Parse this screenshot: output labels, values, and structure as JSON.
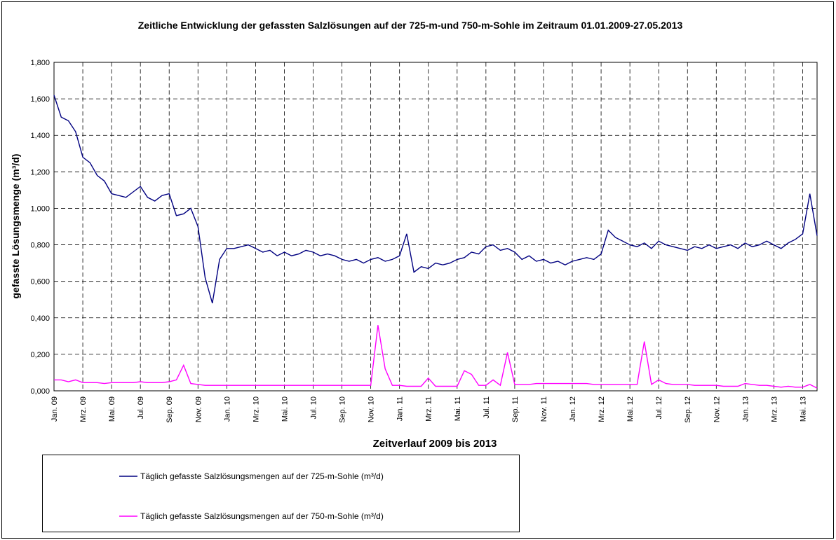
{
  "chart_data": {
    "type": "line",
    "title": "Zeitliche Entwicklung der gefassten Salzlösungen auf der 725-m-und 750-m-Sohle im Zeitraum 01.01.2009-27.05.2013",
    "x_label": "Zeitverlauf 2009 bis 2013",
    "y_label": "gefasste Lösungsmenge (m³/d)",
    "categories": [
      "Jan. 09",
      null,
      null,
      null,
      "Mrz. 09",
      null,
      null,
      null,
      "Mai. 09",
      null,
      null,
      null,
      "Jul. 09",
      null,
      null,
      null,
      "Sep. 09",
      null,
      null,
      null,
      "Nov. 09",
      null,
      null,
      null,
      "Jan. 10",
      null,
      null,
      null,
      "Mrz. 10",
      null,
      null,
      null,
      "Mai. 10",
      null,
      null,
      null,
      "Jul. 10",
      null,
      null,
      null,
      "Sep. 10",
      null,
      null,
      null,
      "Nov. 10",
      null,
      null,
      null,
      "Jan. 11",
      null,
      null,
      null,
      "Mrz. 11",
      null,
      null,
      null,
      "Mai. 11",
      null,
      null,
      null,
      "Jul. 11",
      null,
      null,
      null,
      "Sep. 11",
      null,
      null,
      null,
      "Nov. 11",
      null,
      null,
      null,
      "Jan. 12",
      null,
      null,
      null,
      "Mrz. 12",
      null,
      null,
      null,
      "Mai. 12",
      null,
      null,
      null,
      "Jul. 12",
      null,
      null,
      null,
      "Sep. 12",
      null,
      null,
      null,
      "Nov. 12",
      null,
      null,
      null,
      "Jan. 13",
      null,
      null,
      null,
      "Mrz. 13",
      null,
      null,
      null,
      "Mai. 13",
      null,
      null
    ],
    "series": [
      {
        "name": "Täglich gefasste Salzlösungsmengen auf der 725-m-Sohle (m³/d)",
        "color": "#000080",
        "values": [
          1.62,
          1.5,
          1.48,
          1.42,
          1.28,
          1.25,
          1.18,
          1.15,
          1.08,
          1.07,
          1.06,
          1.09,
          1.12,
          1.06,
          1.04,
          1.07,
          1.08,
          0.96,
          0.97,
          1.0,
          0.9,
          0.62,
          0.48,
          0.72,
          0.78,
          0.78,
          0.79,
          0.8,
          0.78,
          0.76,
          0.77,
          0.74,
          0.76,
          0.74,
          0.75,
          0.77,
          0.76,
          0.74,
          0.75,
          0.74,
          0.72,
          0.71,
          0.72,
          0.7,
          0.72,
          0.73,
          0.71,
          0.72,
          0.74,
          0.86,
          0.65,
          0.68,
          0.67,
          0.7,
          0.69,
          0.7,
          0.72,
          0.73,
          0.76,
          0.75,
          0.79,
          0.8,
          0.77,
          0.78,
          0.76,
          0.72,
          0.74,
          0.71,
          0.72,
          0.7,
          0.71,
          0.69,
          0.71,
          0.72,
          0.73,
          0.72,
          0.75,
          0.88,
          0.84,
          0.82,
          0.8,
          0.79,
          0.81,
          0.78,
          0.82,
          0.8,
          0.79,
          0.78,
          0.77,
          0.79,
          0.78,
          0.8,
          0.78,
          0.79,
          0.8,
          0.78,
          0.81,
          0.79,
          0.8,
          0.82,
          0.8,
          0.78,
          0.81,
          0.83,
          0.86,
          1.08,
          0.85
        ]
      },
      {
        "name": "Täglich gefasste Salzlösungsmengen auf der 750-m-Sohle (m³/d)",
        "color": "#ff00ff",
        "values": [
          0.06,
          0.06,
          0.05,
          0.06,
          0.045,
          0.045,
          0.045,
          0.04,
          0.045,
          0.045,
          0.045,
          0.045,
          0.05,
          0.045,
          0.045,
          0.045,
          0.05,
          0.06,
          0.14,
          0.04,
          0.035,
          0.03,
          0.03,
          0.03,
          0.03,
          0.03,
          0.03,
          0.03,
          0.03,
          0.03,
          0.03,
          0.03,
          0.03,
          0.03,
          0.03,
          0.03,
          0.03,
          0.03,
          0.03,
          0.03,
          0.03,
          0.03,
          0.03,
          0.03,
          0.03,
          0.36,
          0.12,
          0.03,
          0.03,
          0.025,
          0.025,
          0.025,
          0.07,
          0.025,
          0.025,
          0.025,
          0.025,
          0.11,
          0.09,
          0.03,
          0.03,
          0.06,
          0.03,
          0.21,
          0.035,
          0.035,
          0.035,
          0.04,
          0.04,
          0.04,
          0.04,
          0.04,
          0.04,
          0.04,
          0.04,
          0.035,
          0.035,
          0.035,
          0.035,
          0.035,
          0.035,
          0.035,
          0.27,
          0.035,
          0.06,
          0.04,
          0.035,
          0.035,
          0.035,
          0.03,
          0.03,
          0.03,
          0.03,
          0.025,
          0.025,
          0.025,
          0.04,
          0.035,
          0.03,
          0.03,
          0.025,
          0.02,
          0.025,
          0.02,
          0.02,
          0.035,
          0.015
        ]
      }
    ],
    "ylim": [
      0,
      1.8
    ],
    "yticks": [
      {
        "value": 0,
        "label": "0,000"
      },
      {
        "value": 0.2,
        "label": "0,200"
      },
      {
        "value": 0.4,
        "label": "0,400"
      },
      {
        "value": 0.6,
        "label": "0,600"
      },
      {
        "value": 0.8,
        "label": "0,800"
      },
      {
        "value": 1.0,
        "label": "1,000"
      },
      {
        "value": 1.2,
        "label": "1,200"
      },
      {
        "value": 1.4,
        "label": "1,400"
      },
      {
        "value": 1.6,
        "label": "1,600"
      },
      {
        "value": 1.8,
        "label": "1,800"
      }
    ],
    "grid": true
  }
}
